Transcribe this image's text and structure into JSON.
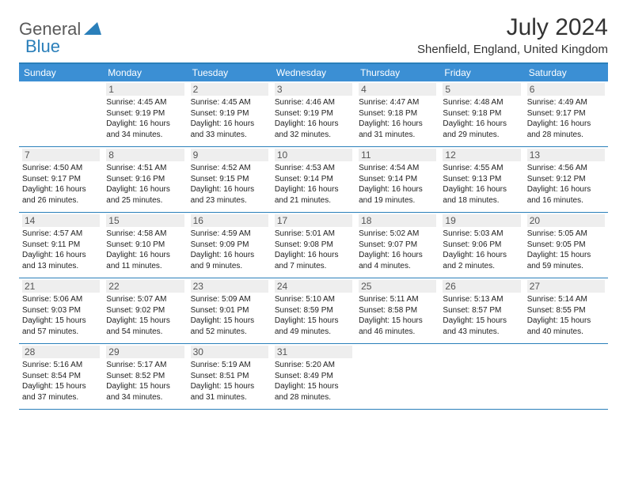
{
  "logo": {
    "general": "General",
    "blue": "Blue"
  },
  "title": "July 2024",
  "location": "Shenfield, England, United Kingdom",
  "colors": {
    "header_bar": "#3b8fd4",
    "border": "#2a7fba",
    "daynum_bg": "#eeeeee",
    "logo_gray": "#5a5a5a",
    "logo_blue": "#2a7fba"
  },
  "weekdays": [
    "Sunday",
    "Monday",
    "Tuesday",
    "Wednesday",
    "Thursday",
    "Friday",
    "Saturday"
  ],
  "weeks": [
    [
      null,
      {
        "n": "1",
        "sr": "4:45 AM",
        "ss": "9:19 PM",
        "dl": "16 hours and 34 minutes."
      },
      {
        "n": "2",
        "sr": "4:45 AM",
        "ss": "9:19 PM",
        "dl": "16 hours and 33 minutes."
      },
      {
        "n": "3",
        "sr": "4:46 AM",
        "ss": "9:19 PM",
        "dl": "16 hours and 32 minutes."
      },
      {
        "n": "4",
        "sr": "4:47 AM",
        "ss": "9:18 PM",
        "dl": "16 hours and 31 minutes."
      },
      {
        "n": "5",
        "sr": "4:48 AM",
        "ss": "9:18 PM",
        "dl": "16 hours and 29 minutes."
      },
      {
        "n": "6",
        "sr": "4:49 AM",
        "ss": "9:17 PM",
        "dl": "16 hours and 28 minutes."
      }
    ],
    [
      {
        "n": "7",
        "sr": "4:50 AM",
        "ss": "9:17 PM",
        "dl": "16 hours and 26 minutes."
      },
      {
        "n": "8",
        "sr": "4:51 AM",
        "ss": "9:16 PM",
        "dl": "16 hours and 25 minutes."
      },
      {
        "n": "9",
        "sr": "4:52 AM",
        "ss": "9:15 PM",
        "dl": "16 hours and 23 minutes."
      },
      {
        "n": "10",
        "sr": "4:53 AM",
        "ss": "9:14 PM",
        "dl": "16 hours and 21 minutes."
      },
      {
        "n": "11",
        "sr": "4:54 AM",
        "ss": "9:14 PM",
        "dl": "16 hours and 19 minutes."
      },
      {
        "n": "12",
        "sr": "4:55 AM",
        "ss": "9:13 PM",
        "dl": "16 hours and 18 minutes."
      },
      {
        "n": "13",
        "sr": "4:56 AM",
        "ss": "9:12 PM",
        "dl": "16 hours and 16 minutes."
      }
    ],
    [
      {
        "n": "14",
        "sr": "4:57 AM",
        "ss": "9:11 PM",
        "dl": "16 hours and 13 minutes."
      },
      {
        "n": "15",
        "sr": "4:58 AM",
        "ss": "9:10 PM",
        "dl": "16 hours and 11 minutes."
      },
      {
        "n": "16",
        "sr": "4:59 AM",
        "ss": "9:09 PM",
        "dl": "16 hours and 9 minutes."
      },
      {
        "n": "17",
        "sr": "5:01 AM",
        "ss": "9:08 PM",
        "dl": "16 hours and 7 minutes."
      },
      {
        "n": "18",
        "sr": "5:02 AM",
        "ss": "9:07 PM",
        "dl": "16 hours and 4 minutes."
      },
      {
        "n": "19",
        "sr": "5:03 AM",
        "ss": "9:06 PM",
        "dl": "16 hours and 2 minutes."
      },
      {
        "n": "20",
        "sr": "5:05 AM",
        "ss": "9:05 PM",
        "dl": "15 hours and 59 minutes."
      }
    ],
    [
      {
        "n": "21",
        "sr": "5:06 AM",
        "ss": "9:03 PM",
        "dl": "15 hours and 57 minutes."
      },
      {
        "n": "22",
        "sr": "5:07 AM",
        "ss": "9:02 PM",
        "dl": "15 hours and 54 minutes."
      },
      {
        "n": "23",
        "sr": "5:09 AM",
        "ss": "9:01 PM",
        "dl": "15 hours and 52 minutes."
      },
      {
        "n": "24",
        "sr": "5:10 AM",
        "ss": "8:59 PM",
        "dl": "15 hours and 49 minutes."
      },
      {
        "n": "25",
        "sr": "5:11 AM",
        "ss": "8:58 PM",
        "dl": "15 hours and 46 minutes."
      },
      {
        "n": "26",
        "sr": "5:13 AM",
        "ss": "8:57 PM",
        "dl": "15 hours and 43 minutes."
      },
      {
        "n": "27",
        "sr": "5:14 AM",
        "ss": "8:55 PM",
        "dl": "15 hours and 40 minutes."
      }
    ],
    [
      {
        "n": "28",
        "sr": "5:16 AM",
        "ss": "8:54 PM",
        "dl": "15 hours and 37 minutes."
      },
      {
        "n": "29",
        "sr": "5:17 AM",
        "ss": "8:52 PM",
        "dl": "15 hours and 34 minutes."
      },
      {
        "n": "30",
        "sr": "5:19 AM",
        "ss": "8:51 PM",
        "dl": "15 hours and 31 minutes."
      },
      {
        "n": "31",
        "sr": "5:20 AM",
        "ss": "8:49 PM",
        "dl": "15 hours and 28 minutes."
      },
      null,
      null,
      null
    ]
  ],
  "labels": {
    "sunrise": "Sunrise: ",
    "sunset": "Sunset: ",
    "daylight": "Daylight: "
  }
}
